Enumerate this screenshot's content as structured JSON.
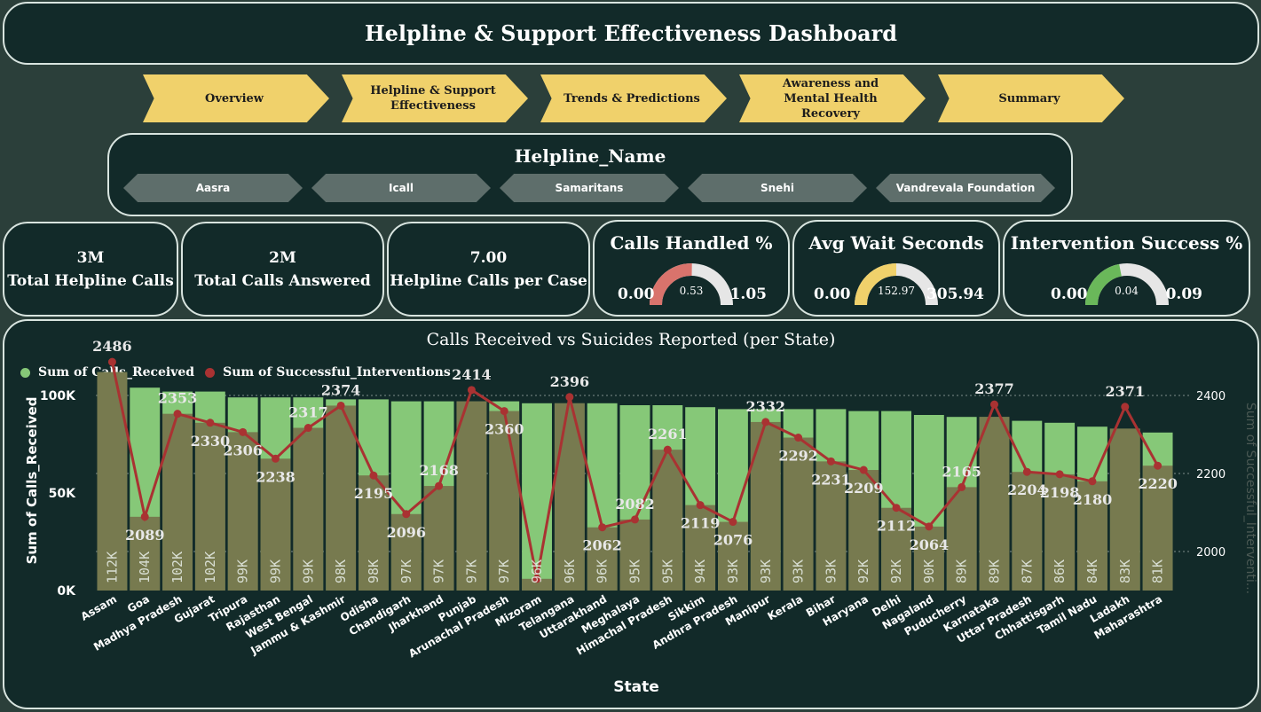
{
  "header": {
    "title": "Helpline & Support Effectiveness Dashboard"
  },
  "nav": [
    {
      "label": "Overview"
    },
    {
      "label": "Helpline & Support Effectiveness"
    },
    {
      "label": "Trends & Predictions"
    },
    {
      "label": "Awareness and Mental Health Recovery"
    },
    {
      "label": "Summary"
    }
  ],
  "slicer": {
    "title": "Helpline_Name",
    "options": [
      "Aasra",
      "Icall",
      "Samaritans",
      "Snehi",
      "Vandrevala Foundation"
    ]
  },
  "kpis": [
    {
      "value": "3M",
      "label": "Total Helpline Calls"
    },
    {
      "value": "2M",
      "label": "Total Calls Answered"
    },
    {
      "value": "7.00",
      "label": "Helpline Calls per Case"
    }
  ],
  "gauges": [
    {
      "title": "Calls Handled %",
      "min": "0.00",
      "max": "1.05",
      "value": "0.53",
      "fraction": 0.505,
      "color": "#d9736c"
    },
    {
      "title": "Avg Wait Seconds",
      "min": "0.00",
      "max": "305.94",
      "value": "152.97",
      "fraction": 0.5,
      "color": "#f0d16b"
    },
    {
      "title": "Intervention Success %",
      "min": "0.00",
      "max": "0.09",
      "value": "0.04",
      "fraction": 0.44,
      "color": "#6ab85a"
    }
  ],
  "colors": {
    "bar": "#86c878",
    "line": "#a93232",
    "yellow": "#f0d16b"
  },
  "chart_data": {
    "type": "bar+line",
    "title": "Calls Received vs Suicides Reported (per State)",
    "xlabel": "State",
    "ylabel": "Sum of Calls_Received",
    "y2label": "Sum of Successful_Interventi...",
    "legend": [
      "Sum of Calls_Received",
      "Sum of Successful_Interventions"
    ],
    "legend_position": "top-left",
    "ylim": [
      0,
      120000
    ],
    "y_ticks": [
      "0K",
      "50K",
      "100K"
    ],
    "y2lim": [
      1900,
      2500
    ],
    "y2_ticks": [
      "2000",
      "2200",
      "2400"
    ],
    "categories": [
      "Assam",
      "Goa",
      "Madhya Pradesh",
      "Gujarat",
      "Tripura",
      "Rajasthan",
      "West Bengal",
      "Jammu & Kashmir",
      "Odisha",
      "Chandigarh",
      "Jharkhand",
      "Punjab",
      "Arunachal Pradesh",
      "Mizoram",
      "Telangana",
      "Uttarakhand",
      "Meghalaya",
      "Himachal Pradesh",
      "Sikkim",
      "Andhra Pradesh",
      "Manipur",
      "Kerala",
      "Bihar",
      "Haryana",
      "Delhi",
      "Nagaland",
      "Puducherry",
      "Karnataka",
      "Uttar Pradesh",
      "Chhattisgarh",
      "Tamil Nadu",
      "Ladakh",
      "Maharashtra"
    ],
    "series": [
      {
        "name": "Sum of Calls_Received",
        "values": [
          112000,
          104000,
          102000,
          102000,
          99000,
          99000,
          99000,
          98000,
          98000,
          97000,
          97000,
          97000,
          97000,
          96000,
          96000,
          96000,
          95000,
          95000,
          94000,
          93000,
          93000,
          93000,
          93000,
          92000,
          92000,
          90000,
          89000,
          89000,
          87000,
          86000,
          84000,
          83000,
          81000
        ],
        "labels": [
          "112K",
          "104K",
          "102K",
          "102K",
          "99K",
          "99K",
          "99K",
          "98K",
          "98K",
          "97K",
          "97K",
          "97K",
          "97K",
          "96K",
          "96K",
          "96K",
          "95K",
          "95K",
          "94K",
          "93K",
          "93K",
          "93K",
          "93K",
          "92K",
          "92K",
          "90K",
          "89K",
          "89K",
          "87K",
          "86K",
          "84K",
          "83K",
          "81K"
        ]
      },
      {
        "name": "Sum of Successful_Interventions",
        "values": [
          2486,
          2089,
          2353,
          2330,
          2306,
          2238,
          2317,
          2374,
          2195,
          2096,
          2168,
          2414,
          2360,
          1930,
          2396,
          2062,
          2082,
          2261,
          2119,
          2076,
          2332,
          2292,
          2231,
          2209,
          2112,
          2064,
          2165,
          2377,
          2204,
          2198,
          2180,
          2371,
          2220
        ],
        "labels": [
          "2486",
          "2089",
          "2353",
          "2330",
          "2306",
          "2238",
          "2317",
          "2374",
          "2195",
          "2096",
          "2168",
          "2414",
          "2360",
          "",
          "2396",
          "2062",
          "2082",
          "2261",
          "2119",
          "2076",
          "2332",
          "2292",
          "2231",
          "2209",
          "2112",
          "2064",
          "2165",
          "2377",
          "2204",
          "2198",
          "2180",
          "2371",
          "2220"
        ]
      }
    ]
  }
}
